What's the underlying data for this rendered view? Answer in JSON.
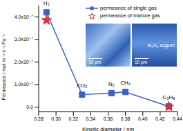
{
  "chart_data": {
    "type": "scatter",
    "x_label": "Kinetic diameter / nm",
    "y_label": "Permeance / mol m⁻² s⁻¹ Pa⁻¹",
    "x": [
      0.289,
      0.33,
      0.364,
      0.38,
      0.43
    ],
    "point_labels": [
      "H₂",
      "CO₂",
      "N₂",
      "CH₄",
      "C₃H₈"
    ],
    "series": [
      {
        "name": "permeance of single gas",
        "color": "#3a5fcd",
        "marker": "square",
        "line_style": "solid",
        "values": [
          4.2e-07,
          5.5e-08,
          6.2e-08,
          6.7e-08,
          3e-09
        ]
      },
      {
        "name": "permeance of mixture gas",
        "color": "#e03030",
        "marker": "star",
        "line_style": "none",
        "values": [
          3.85e-07,
          null,
          null,
          null,
          2e-09
        ]
      }
    ],
    "xlim": [
      0.28,
      0.44
    ],
    "xticks": [
      {
        "value": 0.28,
        "label": "0.28"
      },
      {
        "value": 0.3,
        "label": "0.30"
      },
      {
        "value": 0.32,
        "label": "0.32"
      },
      {
        "value": 0.34,
        "label": "0.34"
      },
      {
        "value": 0.36,
        "label": "0.36"
      },
      {
        "value": 0.38,
        "label": "0.38"
      },
      {
        "value": 0.4,
        "label": "0.40"
      },
      {
        "value": 0.42,
        "label": "0.42"
      },
      {
        "value": 0.44,
        "label": "0.44"
      }
    ],
    "ylim": [
      -2e-08,
      4.5e-07
    ],
    "yticks": [
      {
        "value": 0,
        "label": "0.0"
      },
      {
        "value": 1e-07,
        "label": "1.0x10⁻⁷"
      },
      {
        "value": 2e-07,
        "label": "2.0x10⁻⁷"
      },
      {
        "value": 3e-07,
        "label": "3.0x10⁻⁷"
      },
      {
        "value": 4e-07,
        "label": "4.0x10⁻⁷"
      }
    ],
    "grid": false,
    "legend": "top",
    "annotations": [
      "10 μm",
      "10 μm",
      "Al₂O₃ support"
    ]
  }
}
